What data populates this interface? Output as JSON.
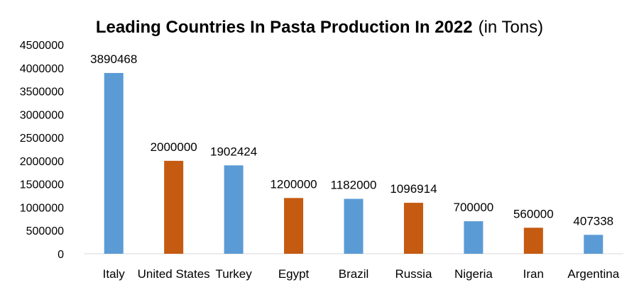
{
  "chart_data": {
    "type": "bar",
    "title": "Leading Countries In Pasta Production In 2022",
    "subtitle": "(in Tons)",
    "xlabel": "",
    "ylabel": "",
    "categories": [
      "Italy",
      "United States",
      "Turkey",
      "Egypt",
      "Brazil",
      "Russia",
      "Nigeria",
      "Iran",
      "Argentina"
    ],
    "values": [
      3890468,
      2000000,
      1902424,
      1200000,
      1182000,
      1096914,
      700000,
      560000,
      407338
    ],
    "data_labels": [
      "3890468",
      "2000000",
      "1902424",
      "1200000",
      "1182000",
      "1096914",
      "700000",
      "560000",
      "407338"
    ],
    "bar_colors": [
      "#5b9bd5",
      "#c55a11",
      "#5b9bd5",
      "#c55a11",
      "#5b9bd5",
      "#c55a11",
      "#5b9bd5",
      "#c55a11",
      "#5b9bd5"
    ],
    "ylim": [
      0,
      4500000
    ],
    "yticks": [
      0,
      500000,
      1000000,
      1500000,
      2000000,
      2500000,
      3000000,
      3500000,
      4000000,
      4500000
    ],
    "ytick_labels": [
      "0",
      "500000",
      "1000000",
      "1500000",
      "2000000",
      "2500000",
      "3000000",
      "3500000",
      "4000000",
      "4500000"
    ],
    "grid": false,
    "legend": "none"
  }
}
